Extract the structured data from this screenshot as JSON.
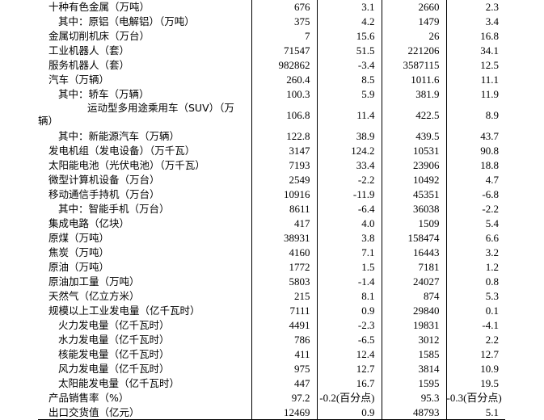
{
  "rows": [
    {
      "label": "十种有色金属（万吨）",
      "level": 0,
      "values": [
        "676",
        "3.1",
        "2660",
        "2.3"
      ]
    },
    {
      "label": "其中：原铝（电解铝）（万吨）",
      "level": 1,
      "values": [
        "375",
        "4.2",
        "1479",
        "3.4"
      ]
    },
    {
      "label": "金属切削机床（万台）",
      "level": 0,
      "values": [
        "7",
        "15.6",
        "26",
        "16.8"
      ]
    },
    {
      "label": "工业机器人（套）",
      "level": 0,
      "values": [
        "71547",
        "51.5",
        "221206",
        "34.1"
      ]
    },
    {
      "label": "服务机器人（套）",
      "level": 0,
      "values": [
        "982862",
        "-3.4",
        "3587115",
        "12.5"
      ]
    },
    {
      "label": "汽车（万辆）",
      "level": 0,
      "values": [
        "260.4",
        "8.5",
        "1011.6",
        "11.1"
      ]
    },
    {
      "label": "其中：轿车（万辆）",
      "level": 1,
      "values": [
        "100.3",
        "5.9",
        "381.9",
        "11.9"
      ]
    },
    {
      "label": "运动型多用途乘用车（SUV）（万辆）",
      "level": 2,
      "values": [
        "106.8",
        "11.4",
        "422.5",
        "8.9"
      ]
    },
    {
      "label": "其中：新能源汽车（万辆）",
      "level": 1,
      "values": [
        "122.8",
        "38.9",
        "439.5",
        "43.7"
      ]
    },
    {
      "label": "发电机组（发电设备）（万千瓦）",
      "level": 0,
      "values": [
        "3147",
        "124.2",
        "10531",
        "90.8"
      ]
    },
    {
      "label": "太阳能电池（光伏电池）（万千瓦）",
      "level": 0,
      "values": [
        "7193",
        "33.4",
        "23906",
        "18.8"
      ]
    },
    {
      "label": "微型计算机设备（万台）",
      "level": 0,
      "values": [
        "2549",
        "-2.2",
        "10492",
        "4.7"
      ]
    },
    {
      "label": "移动通信手持机（万台）",
      "level": 0,
      "values": [
        "10916",
        "-11.9",
        "45351",
        "-6.8"
      ]
    },
    {
      "label": "其中：智能手机（万台）",
      "level": 1,
      "values": [
        "8611",
        "-6.4",
        "36038",
        "-2.2"
      ]
    },
    {
      "label": "集成电路（亿块）",
      "level": 0,
      "values": [
        "417",
        "4.0",
        "1509",
        "5.4"
      ]
    },
    {
      "label": "原煤（万吨）",
      "level": 0,
      "values": [
        "38931",
        "3.8",
        "158474",
        "6.6"
      ]
    },
    {
      "label": "焦炭（万吨）",
      "level": 0,
      "values": [
        "4160",
        "7.1",
        "16443",
        "3.2"
      ]
    },
    {
      "label": "原油（万吨）",
      "level": 0,
      "values": [
        "1772",
        "1.5",
        "7181",
        "1.2"
      ]
    },
    {
      "label": "原油加工量（万吨）",
      "level": 0,
      "values": [
        "5803",
        "-1.4",
        "24027",
        "0.8"
      ]
    },
    {
      "label": "天然气（亿立方米）",
      "level": 0,
      "values": [
        "215",
        "8.1",
        "874",
        "5.3"
      ]
    },
    {
      "label": "规模以上工业发电量（亿千瓦时）",
      "level": 0,
      "values": [
        "7111",
        "0.9",
        "29840",
        "0.1"
      ]
    },
    {
      "label": "火力发电量（亿千瓦时）",
      "level": 1,
      "values": [
        "4491",
        "-2.3",
        "19831",
        "-4.1"
      ]
    },
    {
      "label": "水力发电量（亿千瓦时）",
      "level": 1,
      "values": [
        "786",
        "-6.5",
        "3012",
        "2.2"
      ]
    },
    {
      "label": "核能发电量（亿千瓦时）",
      "level": 1,
      "values": [
        "411",
        "12.4",
        "1585",
        "12.7"
      ]
    },
    {
      "label": "风力发电量（亿千瓦时）",
      "level": 1,
      "values": [
        "975",
        "12.7",
        "3814",
        "10.9"
      ]
    },
    {
      "label": "太阳能发电量（亿千瓦时）",
      "level": 1,
      "values": [
        "447",
        "16.7",
        "1595",
        "19.5"
      ]
    },
    {
      "label": "产品销售率（%）",
      "level": 0,
      "values": [
        "97.2",
        "-0.2(百分点)",
        "95.3",
        "-0.3(百分点)"
      ]
    },
    {
      "label": "出口交货值（亿元）",
      "level": 0,
      "values": [
        "12469",
        "0.9",
        "48793",
        "5.1"
      ]
    }
  ]
}
